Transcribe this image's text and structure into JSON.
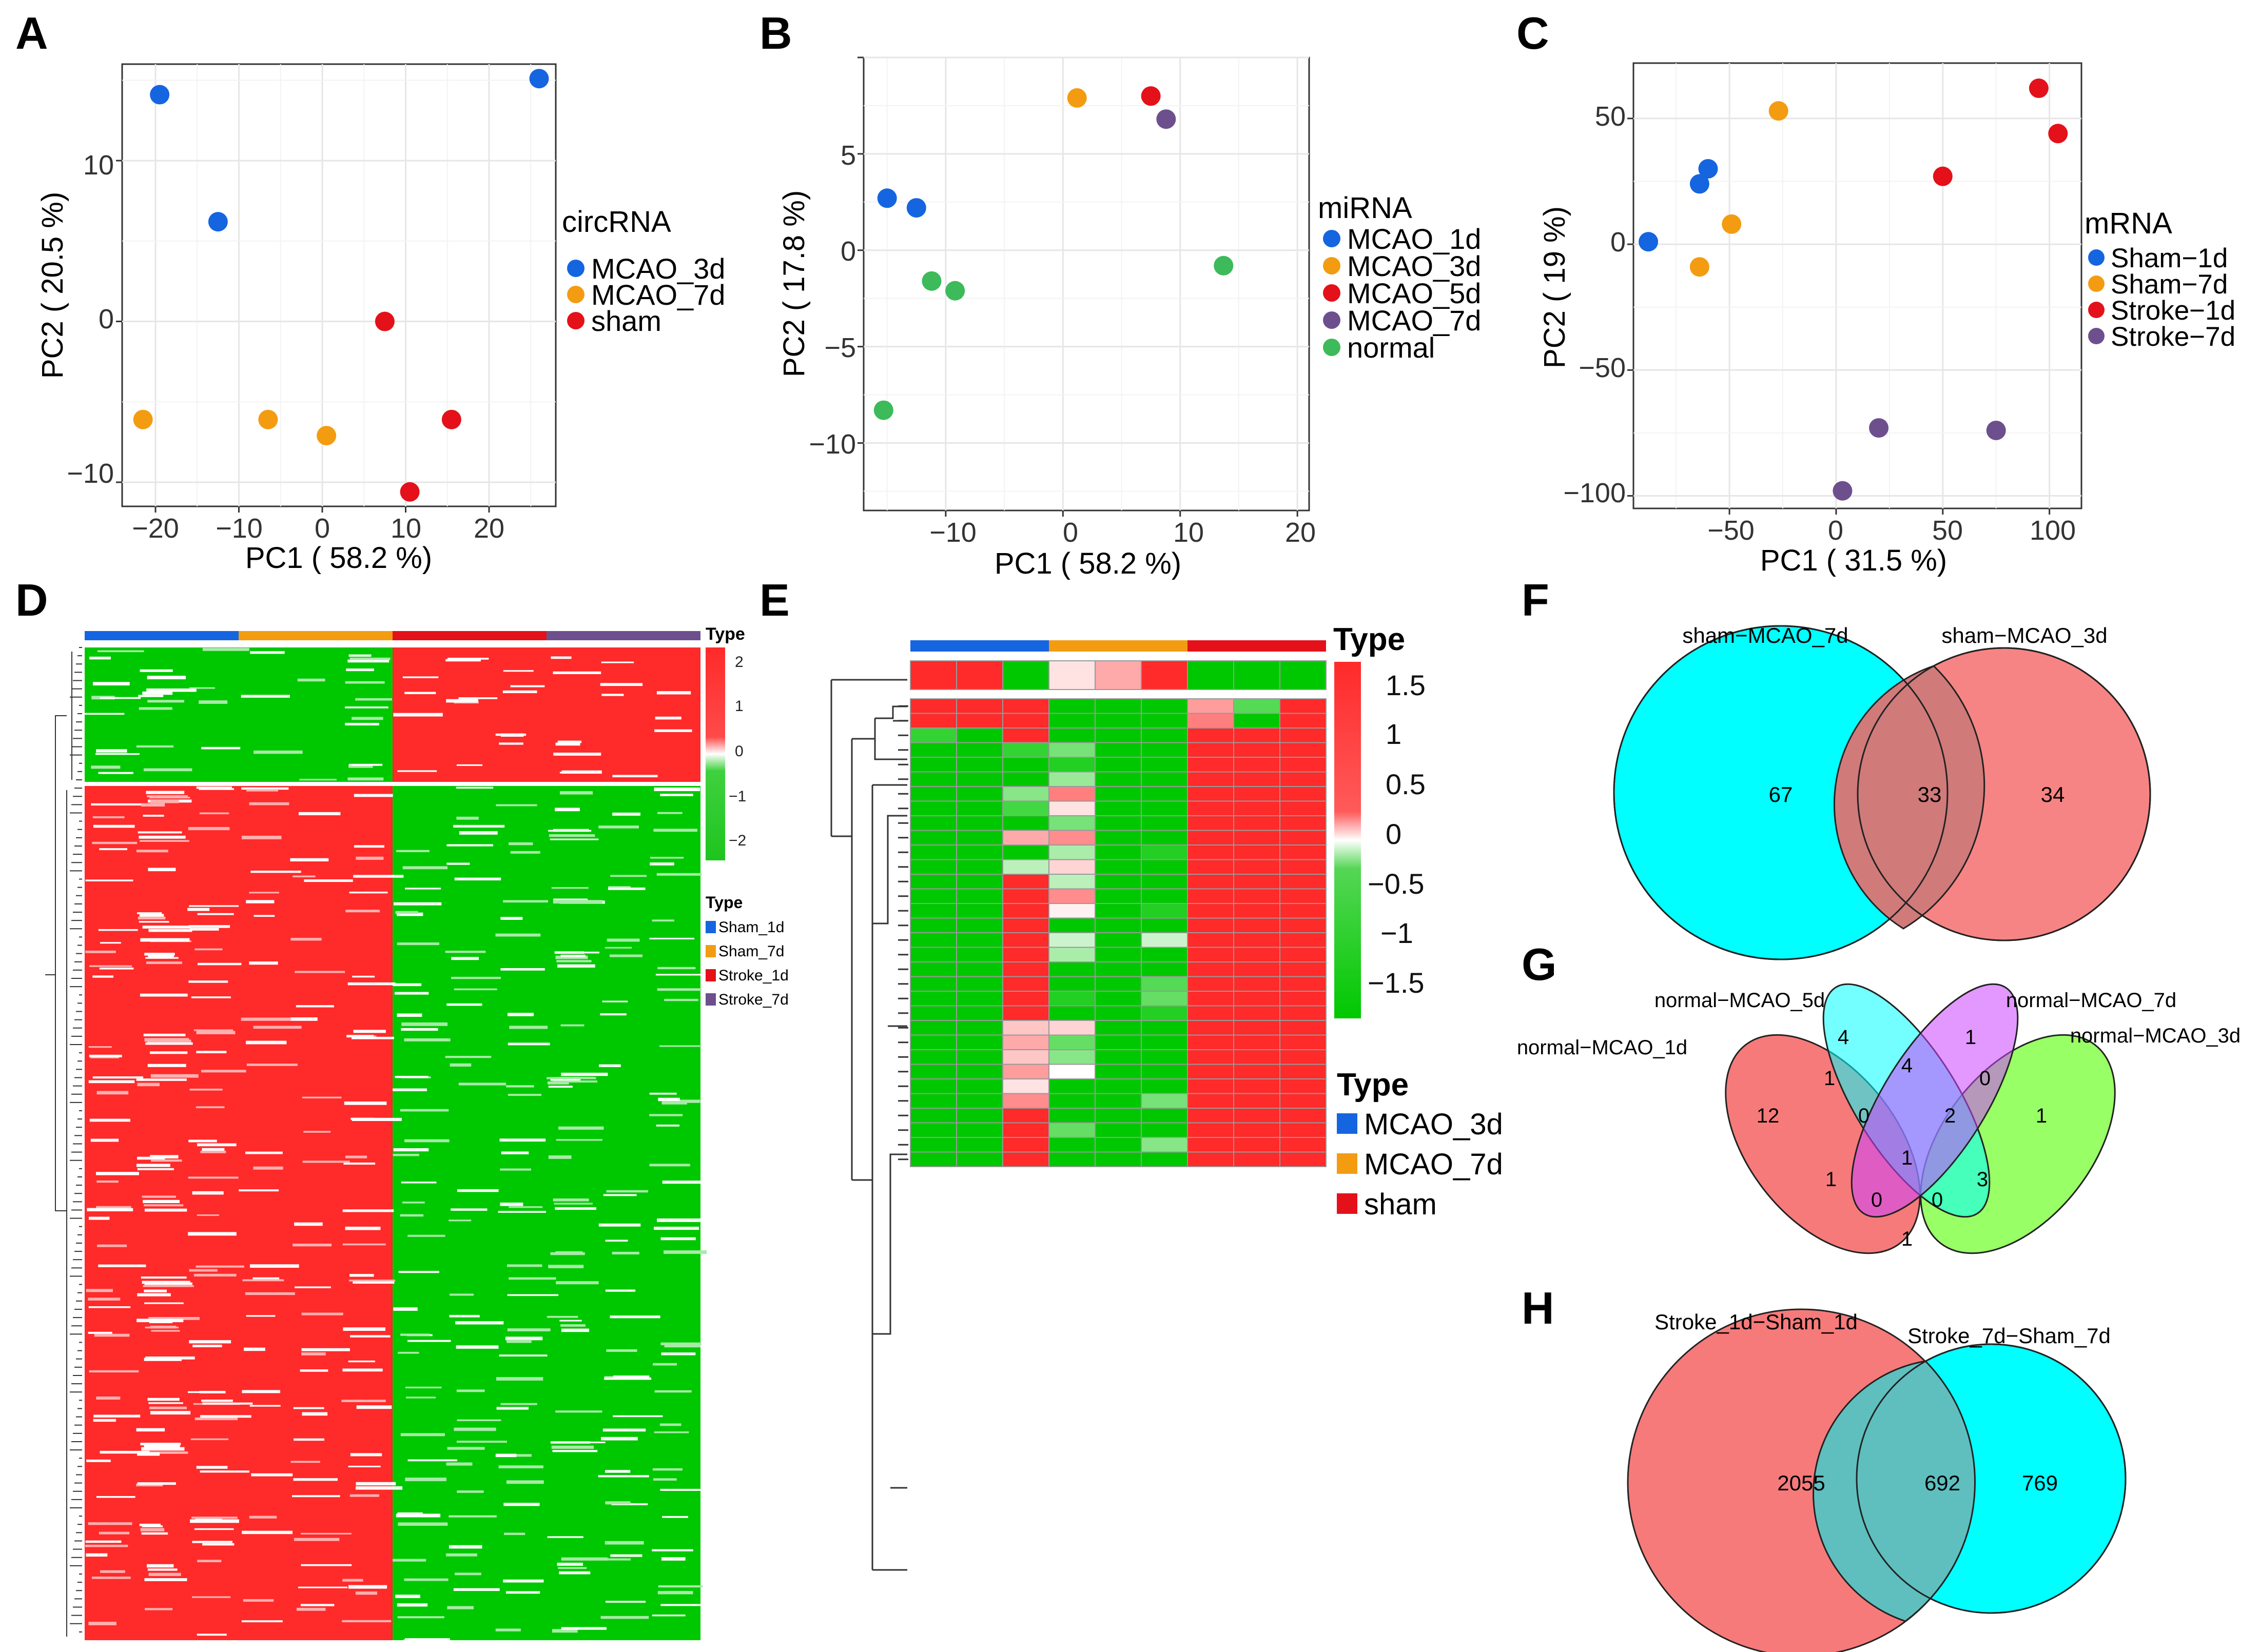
{
  "panel_letters": [
    "A",
    "B",
    "C",
    "D",
    "E",
    "F",
    "G",
    "H"
  ],
  "chart_data": [
    {
      "panel": "A",
      "type": "scatter",
      "xlabel": "PC1 ( 58.2 %)",
      "ylabel": "PC2 ( 20.5 %)",
      "xlim": [
        -24,
        28
      ],
      "ylim": [
        -11.5,
        16
      ],
      "xticks": [
        -20,
        -10,
        0,
        10,
        20
      ],
      "yticks": [
        -10,
        0,
        10
      ],
      "xtick_labels": [
        "−20",
        "−10",
        "0",
        "10",
        "20"
      ],
      "ytick_labels": [
        "−10",
        "0",
        "10"
      ],
      "grid": true,
      "legend": {
        "title": "circRNA",
        "position": "right"
      },
      "series": [
        {
          "name": "MCAO_3d",
          "color": "#1565e0",
          "points": [
            [
              -19.5,
              14.1
            ],
            [
              -12.5,
              6.2
            ],
            [
              26.0,
              15.1
            ]
          ]
        },
        {
          "name": "MCAO_7d",
          "color": "#f39c12",
          "points": [
            [
              -21.5,
              -6.1
            ],
            [
              -6.5,
              -6.1
            ],
            [
              0.5,
              -7.1
            ]
          ]
        },
        {
          "name": "sham",
          "color": "#e4111a",
          "points": [
            [
              7.5,
              0.0
            ],
            [
              15.5,
              -6.1
            ],
            [
              10.5,
              -10.6
            ]
          ]
        }
      ]
    },
    {
      "panel": "B",
      "type": "scatter",
      "xlabel": "PC1 ( 58.2 %)",
      "ylabel": "PC2 ( 17.8 %)",
      "xlim": [
        -17,
        21
      ],
      "ylim": [
        -13.5,
        10
      ],
      "xticks": [
        -10,
        0,
        10,
        20
      ],
      "yticks": [
        -10,
        -5,
        0,
        5
      ],
      "xtick_labels": [
        "−10",
        "0",
        "10",
        "20"
      ],
      "ytick_labels": [
        "−10",
        "−5",
        "0",
        "5"
      ],
      "grid": true,
      "legend": {
        "title": "miRNA",
        "position": "right"
      },
      "series": [
        {
          "name": "MCAO_1d",
          "color": "#1565e0",
          "points": [
            [
              -15.0,
              2.7
            ],
            [
              -12.5,
              2.2
            ]
          ]
        },
        {
          "name": "MCAO_3d",
          "color": "#f39c12",
          "points": [
            [
              1.2,
              7.9
            ]
          ]
        },
        {
          "name": "MCAO_5d",
          "color": "#e4111a",
          "points": [
            [
              7.5,
              8.0
            ]
          ]
        },
        {
          "name": "MCAO_7d",
          "color": "#6d4f8e",
          "points": [
            [
              8.8,
              6.8
            ]
          ]
        },
        {
          "name": "normal",
          "color": "#3dba5a",
          "points": [
            [
              -11.2,
              -1.6
            ],
            [
              -9.2,
              -2.1
            ],
            [
              13.7,
              -0.8
            ],
            [
              -15.3,
              -8.3
            ]
          ]
        }
      ]
    },
    {
      "panel": "C",
      "type": "scatter",
      "xlabel": "PC1 ( 31.5 %)",
      "ylabel": "PC2 ( 19 %)",
      "xlim": [
        -95,
        115
      ],
      "ylim": [
        -105,
        72
      ],
      "xticks": [
        -50,
        0,
        50,
        100
      ],
      "yticks": [
        -100,
        -50,
        0,
        50
      ],
      "xtick_labels": [
        "−50",
        "0",
        "50",
        "100"
      ],
      "ytick_labels": [
        "−100",
        "−50",
        "0",
        "50"
      ],
      "grid": true,
      "legend": {
        "title": "mRNA",
        "position": "right"
      },
      "series": [
        {
          "name": "Sham−1d",
          "color": "#1565e0",
          "points": [
            [
              -60.0,
              30.0
            ],
            [
              -64.0,
              24.0
            ],
            [
              -88.0,
              1.0
            ]
          ]
        },
        {
          "name": "Sham−7d",
          "color": "#f39c12",
          "points": [
            [
              -27.0,
              53.0
            ],
            [
              -49.0,
              8.0
            ],
            [
              -64.0,
              -9.0
            ]
          ]
        },
        {
          "name": "Stroke−1d",
          "color": "#e4111a",
          "points": [
            [
              95.0,
              62.0
            ],
            [
              104.0,
              44.0
            ],
            [
              50.0,
              27.0
            ]
          ]
        },
        {
          "name": "Stroke−7d",
          "color": "#6d4f8e",
          "points": [
            [
              20.0,
              -73.0
            ],
            [
              75.0,
              -74.0
            ],
            [
              3.0,
              -98.0
            ]
          ]
        }
      ]
    },
    {
      "panel": "D",
      "type": "heatmap",
      "columns": 12,
      "column_groups": [
        "Sham_1d",
        "Sham_7d",
        "Stroke_1d",
        "Stroke_7d"
      ],
      "group_colors": [
        "#1565e0",
        "#f39c12",
        "#e4111a",
        "#6d4f8e"
      ],
      "scale": {
        "title": "Type",
        "ticks": [
          2,
          1,
          0,
          -1,
          -2
        ],
        "tick_labels": [
          "2",
          "1",
          "0",
          "−1",
          "−2"
        ],
        "high": "#ff2a2a",
        "mid": "#ffffff",
        "low": "#1ec41e"
      },
      "legend": {
        "title": "Type",
        "entries": [
          "Sham_1d",
          "Sham_7d",
          "Stroke_1d",
          "Stroke_7d"
        ]
      },
      "blocks": [
        {
          "rows": "upper",
          "pattern": [
            "low",
            "low",
            "low",
            "low",
            "low",
            "low",
            "high",
            "high",
            "high",
            "high",
            "high",
            "high"
          ]
        },
        {
          "rows": "lower",
          "pattern": [
            "high",
            "high",
            "high",
            "high",
            "high",
            "high",
            "low",
            "low",
            "low",
            "low",
            "low",
            "low"
          ]
        }
      ]
    },
    {
      "panel": "E",
      "type": "heatmap",
      "n_cols": 9,
      "n_rows": 32,
      "column_groups": [
        "MCAO_3d",
        "MCAO_7d",
        "sham"
      ],
      "group_colors": [
        "#1565e0",
        "#f39c12",
        "#e4111a"
      ],
      "scale": {
        "title": "Type",
        "ticks": [
          1.5,
          1,
          0.5,
          0,
          -0.5,
          -1,
          -1.5
        ],
        "tick_labels": [
          "1.5",
          "1",
          "0.5",
          "0",
          "−0.5",
          "−1",
          "−1.5"
        ]
      },
      "legend": {
        "title": "Type",
        "entries": [
          "MCAO_3d",
          "MCAO_7d",
          "sham"
        ]
      },
      "top_row": [
        1.5,
        1.5,
        -1.5,
        0.2,
        0.6,
        1.5,
        -1.5,
        -1.5,
        -1.5
      ],
      "rows": [
        [
          1.5,
          1.5,
          1.5,
          -1.5,
          -1.5,
          -1.5,
          0.7,
          -1.0,
          1.5
        ],
        [
          1.5,
          1.5,
          1.5,
          -1.5,
          -1.5,
          -1.5,
          0.9,
          -1.5,
          1.5
        ],
        [
          -1.2,
          -1.5,
          1.5,
          -1.5,
          -1.5,
          -1.5,
          1.5,
          1.5,
          1.5
        ],
        [
          -1.5,
          -1.5,
          -1.2,
          -0.8,
          -1.5,
          -1.5,
          1.5,
          1.5,
          1.5
        ],
        [
          -1.5,
          -1.5,
          -1.5,
          -1.3,
          -1.5,
          -1.5,
          1.5,
          1.5,
          1.5
        ],
        [
          -1.5,
          -1.5,
          -1.5,
          -0.6,
          -1.5,
          -1.5,
          1.5,
          1.5,
          1.5
        ],
        [
          -1.5,
          -1.5,
          -0.7,
          0.9,
          -1.5,
          -1.5,
          1.5,
          1.5,
          1.5
        ],
        [
          -1.5,
          -1.5,
          -1.1,
          0.2,
          -1.5,
          -1.5,
          1.5,
          1.5,
          1.5
        ],
        [
          -1.5,
          -1.5,
          -1.5,
          -0.8,
          -1.5,
          -1.5,
          1.5,
          1.5,
          1.5
        ],
        [
          -1.5,
          -1.5,
          0.6,
          0.8,
          -1.5,
          -1.5,
          1.5,
          1.5,
          1.5
        ],
        [
          -1.5,
          -1.5,
          -1.5,
          -0.5,
          -1.5,
          -1.3,
          1.5,
          1.5,
          1.5
        ],
        [
          -1.5,
          -1.5,
          -0.4,
          0.3,
          -1.5,
          -1.5,
          1.5,
          1.5,
          1.5
        ],
        [
          -1.5,
          -1.5,
          1.5,
          -0.4,
          -1.5,
          -1.5,
          1.5,
          1.5,
          1.5
        ],
        [
          -1.5,
          -1.5,
          1.5,
          0.8,
          -1.5,
          -1.5,
          1.5,
          1.5,
          1.5
        ],
        [
          -1.5,
          -1.5,
          1.5,
          0.1,
          -1.5,
          -1.3,
          1.5,
          1.5,
          1.5
        ],
        [
          -1.5,
          -1.5,
          1.5,
          -1.5,
          -1.5,
          -1.5,
          1.5,
          1.5,
          1.5
        ],
        [
          -1.5,
          -1.5,
          1.5,
          -0.3,
          -1.5,
          -0.3,
          1.5,
          1.5,
          1.5
        ],
        [
          -1.5,
          -1.5,
          1.5,
          -0.5,
          -1.5,
          -1.5,
          1.5,
          1.5,
          1.5
        ],
        [
          -1.5,
          -1.5,
          1.5,
          -1.5,
          -1.5,
          -1.5,
          1.5,
          1.5,
          1.5
        ],
        [
          -1.5,
          -1.5,
          1.5,
          -1.5,
          -1.5,
          -1.0,
          1.5,
          1.5,
          1.5
        ],
        [
          -1.5,
          -1.5,
          1.5,
          -1.3,
          -1.5,
          -0.9,
          1.5,
          1.5,
          1.5
        ],
        [
          -1.5,
          -1.5,
          1.5,
          -1.5,
          -1.5,
          -1.3,
          1.5,
          1.5,
          1.5
        ],
        [
          -1.5,
          -1.5,
          0.4,
          0.3,
          -1.5,
          -1.5,
          1.5,
          1.5,
          1.5
        ],
        [
          -1.5,
          -1.5,
          0.6,
          -0.9,
          -1.5,
          -1.5,
          1.5,
          1.5,
          1.5
        ],
        [
          -1.5,
          -1.5,
          0.4,
          -0.7,
          -1.5,
          -1.5,
          1.5,
          1.5,
          1.5
        ],
        [
          -1.5,
          -1.5,
          0.7,
          0.0,
          -1.5,
          -1.5,
          1.5,
          1.5,
          1.5
        ],
        [
          -1.5,
          -1.5,
          0.2,
          -1.5,
          -1.5,
          -1.5,
          1.5,
          1.5,
          1.5
        ],
        [
          -1.5,
          -1.5,
          0.8,
          -1.5,
          -1.5,
          -0.8,
          1.5,
          1.5,
          1.5
        ],
        [
          -1.5,
          -1.5,
          1.5,
          -1.5,
          -1.5,
          -1.5,
          1.5,
          1.5,
          1.5
        ],
        [
          -1.5,
          -1.5,
          1.5,
          -0.9,
          -1.5,
          -1.5,
          1.5,
          1.5,
          1.5
        ],
        [
          -1.5,
          -1.5,
          1.5,
          -1.5,
          -1.5,
          -0.7,
          1.5,
          1.5,
          1.5
        ],
        [
          -1.5,
          -1.5,
          1.5,
          -1.5,
          -1.5,
          -1.5,
          1.5,
          1.5,
          1.5
        ]
      ]
    },
    {
      "panel": "F",
      "type": "venn",
      "sets": [
        {
          "name": "sham−MCAO_7d",
          "color": "#00ffff"
        },
        {
          "name": "sham−MCAO_3d",
          "color": "#f67a7a"
        }
      ],
      "regions": [
        {
          "label": "only sham−MCAO_7d",
          "count": 67
        },
        {
          "label": "both",
          "count": 33
        },
        {
          "label": "only sham−MCAO_3d",
          "count": 34
        }
      ]
    },
    {
      "panel": "G",
      "type": "venn",
      "sets": [
        {
          "name": "normal−MCAO_1d",
          "color": "#f67a7a"
        },
        {
          "name": "normal−MCAO_5d",
          "color": "#00ffff"
        },
        {
          "name": "normal−MCAO_7d",
          "color": "#cc66ff"
        },
        {
          "name": "normal−MCAO_3d",
          "color": "#99ff66"
        }
      ],
      "regions": [
        {
          "label": "5d only",
          "count": 4
        },
        {
          "label": "7d only",
          "count": 1
        },
        {
          "label": "1d only",
          "count": 12
        },
        {
          "label": "3d only",
          "count": 1
        },
        {
          "label": "1d & 5d",
          "count": 1
        },
        {
          "label": "5d & 7d",
          "count": 4
        },
        {
          "label": "7d & 3d",
          "count": 0
        },
        {
          "label": "1d & 5d & 7d",
          "count": 0
        },
        {
          "label": "5d & 7d & 3d",
          "count": 2
        },
        {
          "label": "all four",
          "count": 1
        },
        {
          "label": "1d & 7d",
          "count": 1
        },
        {
          "label": "5d & 3d",
          "count": 3
        },
        {
          "label": "1d & 7d & 3d",
          "count": 0
        },
        {
          "label": "1d & 5d & 3d",
          "count": 0
        },
        {
          "label": "1d & 3d",
          "count": 1
        }
      ]
    },
    {
      "panel": "H",
      "type": "venn",
      "sets": [
        {
          "name": "Stroke_1d−Sham_1d",
          "color": "#f67a7a"
        },
        {
          "name": "Stroke_7d−Sham_7d",
          "color": "#00ffff"
        }
      ],
      "regions": [
        {
          "label": "only Stroke_1d−Sham_1d",
          "count": 2055
        },
        {
          "label": "both",
          "count": 692
        },
        {
          "label": "only Stroke_7d−Sham_7d",
          "count": 769
        }
      ]
    }
  ]
}
